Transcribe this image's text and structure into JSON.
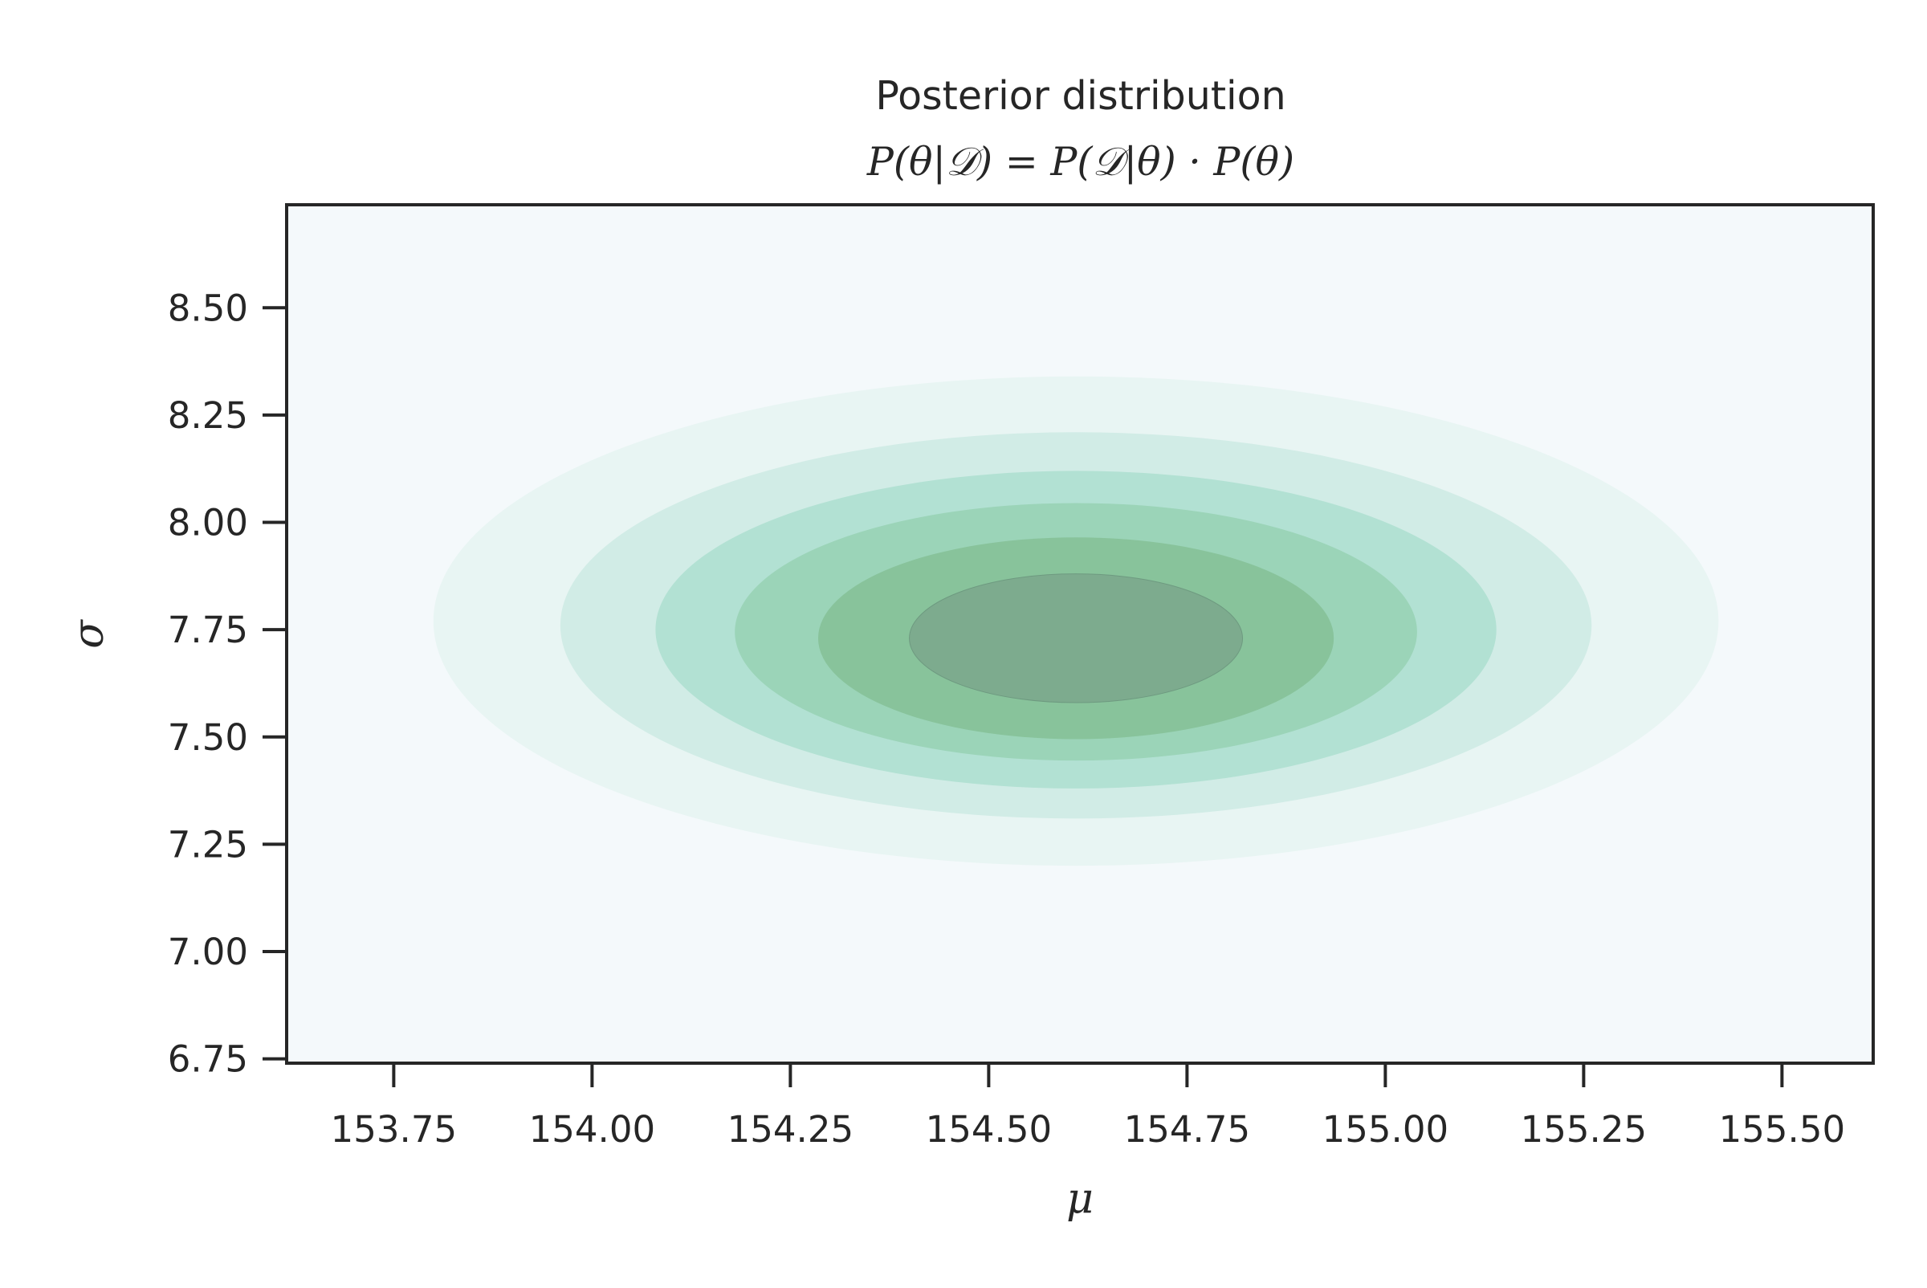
{
  "chart_data": {
    "type": "contour",
    "title": "Posterior distribution",
    "subtitle": "P(θ|𝒟) = P(𝒟|θ) · P(θ)",
    "xlabel": "μ",
    "ylabel": "σ",
    "xlim": [
      153.615,
      155.615
    ],
    "ylim": [
      6.74,
      8.74
    ],
    "xticks": [
      "153.75",
      "154.00",
      "154.25",
      "154.50",
      "154.75",
      "155.00",
      "155.25",
      "155.50"
    ],
    "yticks": [
      "6.75",
      "7.00",
      "7.25",
      "7.50",
      "7.75",
      "8.00",
      "8.25",
      "8.50"
    ],
    "background_color": "#f4f9fb",
    "colormap": "BuGn",
    "grid": false,
    "legend": "none",
    "contour_levels": [
      {
        "center_mu": 154.61,
        "center_sigma": 7.77,
        "half_width_mu": 0.81,
        "half_height_sigma": 0.57,
        "color": "#e8f5f3"
      },
      {
        "center_mu": 154.61,
        "center_sigma": 7.76,
        "half_width_mu": 0.65,
        "half_height_sigma": 0.45,
        "color": "#d1ece6"
      },
      {
        "center_mu": 154.61,
        "center_sigma": 7.75,
        "half_width_mu": 0.53,
        "half_height_sigma": 0.37,
        "color": "#b2e1d3"
      },
      {
        "center_mu": 154.61,
        "center_sigma": 7.745,
        "half_width_mu": 0.43,
        "half_height_sigma": 0.3,
        "color": "#9bd4b8"
      },
      {
        "center_mu": 154.61,
        "center_sigma": 7.73,
        "half_width_mu": 0.325,
        "half_height_sigma": 0.235,
        "color": "#88c39b"
      },
      {
        "center_mu": 154.61,
        "center_sigma": 7.73,
        "half_width_mu": 0.21,
        "half_height_sigma": 0.15,
        "color": "#7dab8e"
      }
    ]
  }
}
